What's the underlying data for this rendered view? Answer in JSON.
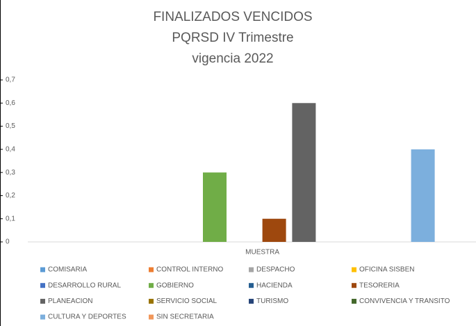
{
  "chart_data": {
    "type": "bar",
    "title": [
      "FINALIZADOS VENCIDOS",
      "PQRSD  IV Trimestre",
      "vigencia 2022"
    ],
    "categories": [
      "MUESTRA"
    ],
    "series": [
      {
        "name": "COMISARIA",
        "color": "#5b9bd5",
        "values": [
          0
        ]
      },
      {
        "name": "CONTROL INTERNO",
        "color": "#ed7d31",
        "values": [
          0
        ]
      },
      {
        "name": "DESPACHO",
        "color": "#a5a5a5",
        "values": [
          0
        ]
      },
      {
        "name": "OFICINA SISBEN",
        "color": "#ffc000",
        "values": [
          0
        ]
      },
      {
        "name": "DESARROLLO RURAL",
        "color": "#4472c4",
        "values": [
          0
        ]
      },
      {
        "name": "GOBIERNO",
        "color": "#70ad47",
        "values": [
          0.3
        ]
      },
      {
        "name": "HACIENDA",
        "color": "#255e91",
        "values": [
          0
        ]
      },
      {
        "name": "TESORERIA",
        "color": "#9e480e",
        "values": [
          0.1
        ]
      },
      {
        "name": "PLANEACION",
        "color": "#636363",
        "values": [
          0.6
        ]
      },
      {
        "name": "SERVICIO SOCIAL",
        "color": "#997300",
        "values": [
          0
        ]
      },
      {
        "name": "TURISMO",
        "color": "#264478",
        "values": [
          0
        ]
      },
      {
        "name": "CONVIVENCIA Y TRANSITO",
        "color": "#43682b",
        "values": [
          0
        ]
      },
      {
        "name": "CULTURA Y DEPORTES",
        "color": "#7cafdd",
        "values": [
          0.4
        ]
      },
      {
        "name": "SIN SECRETARIA",
        "color": "#f1975a",
        "values": [
          0
        ]
      }
    ],
    "ylim": [
      0,
      0.7
    ],
    "yticks": [
      0,
      {
        "value": 0.1,
        "label": "0,1"
      },
      {
        "value": 0.2,
        "label": "0,2"
      },
      {
        "value": 0.3,
        "label": "0,3"
      },
      {
        "value": 0.4,
        "label": "0,4"
      },
      {
        "value": 0.5,
        "label": "0,5"
      },
      {
        "value": 0.6,
        "label": "0,6"
      },
      {
        "value": 0.7,
        "label": "0,7"
      }
    ],
    "grid": false,
    "legend": "bottom"
  }
}
